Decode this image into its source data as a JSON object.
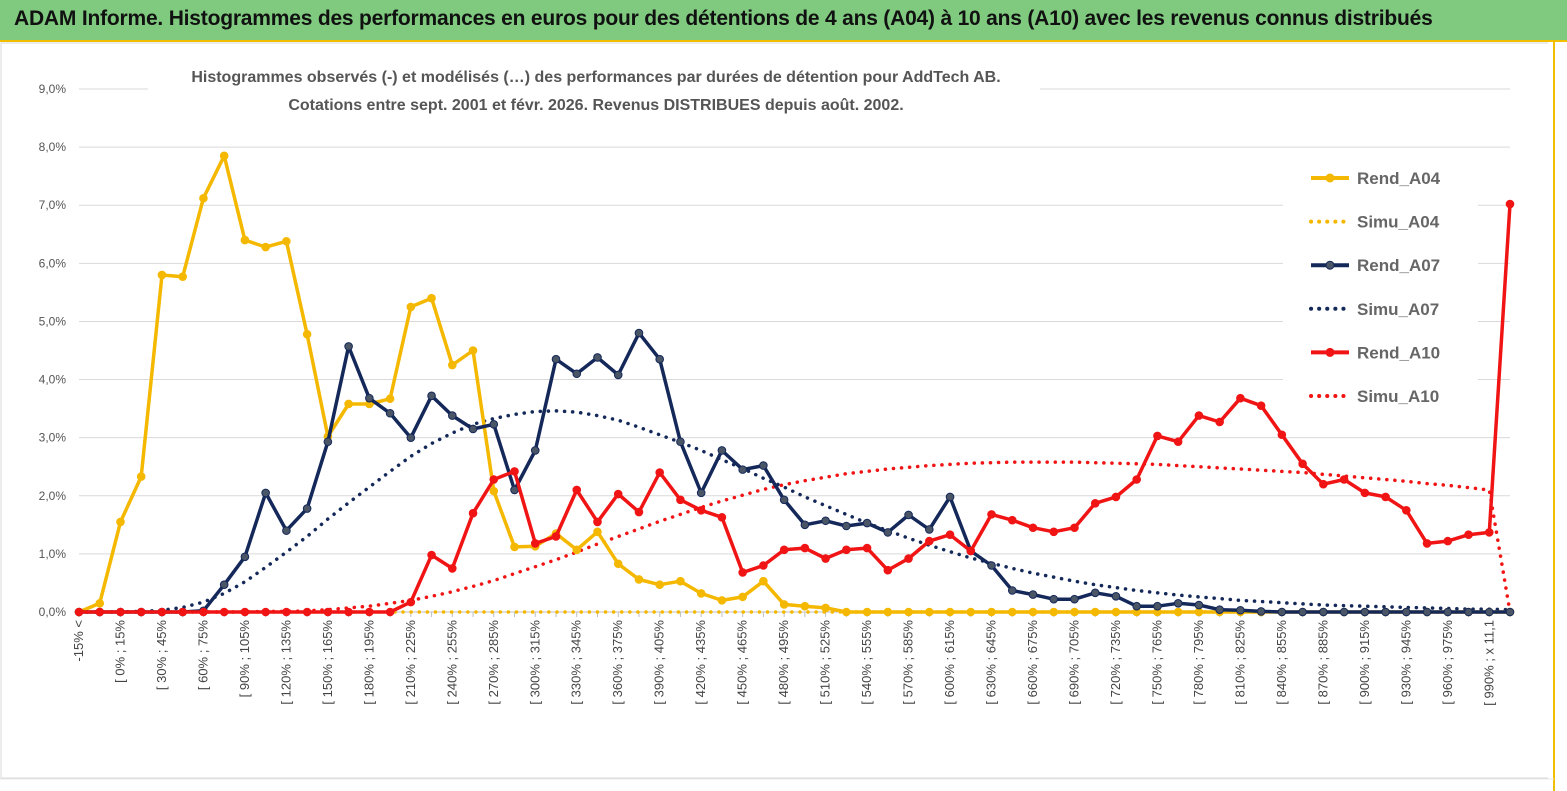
{
  "banner": {
    "title": "ADAM Informe. Histogrammes des performances en euros pour des détentions de 4 ans (A04) à 10 ans (A10) avec les revenus connus distribués"
  },
  "chart_data": {
    "type": "line",
    "title_line1": "Histogrammes observés (-)  et modélisés (…) des performances par durées de détention pour AddTech AB.",
    "title_line2": "Cotations entre sept. 2001 et févr. 2026. Revenus DISTRIBUES depuis août. 2002.",
    "y_ticks": [
      "0,0%",
      "1,0%",
      "2,0%",
      "3,0%",
      "4,0%",
      "5,0%",
      "6,0%",
      "7,0%",
      "8,0%",
      "9,0%"
    ],
    "ylim": [
      0,
      9
    ],
    "x_tick_labels": [
      "-15% <",
      "[ 0% ; 15%",
      "[ 30% ; 45%",
      "[ 60% ; 75%",
      "[ 90% ; 105%",
      "[ 120% ; 135%",
      "[ 150% ; 165%",
      "[ 180% ; 195%",
      "[ 210% ; 225%",
      "[ 240% ; 255%",
      "[ 270% ; 285%",
      "[ 300% ; 315%",
      "[ 330% ; 345%",
      "[ 360% ; 375%",
      "[ 390% ; 405%",
      "[ 420% ; 435%",
      "[ 450% ; 465%",
      "[ 480% ; 495%",
      "[ 510% ; 525%",
      "[ 540% ; 555%",
      "[ 570% ; 585%",
      "[ 600% ; 615%",
      "[ 630% ; 645%",
      "[ 660% ; 675%",
      "[ 690% ; 705%",
      "[ 720% ; 735%",
      "[ 750% ; 765%",
      "[ 780% ; 795%",
      "[ 810% ; 825%",
      "[ 840% ; 855%",
      "[ 870% ; 885%",
      "[ 900% ; 915%",
      "[ 930% ; 945%",
      "[ 960% ; 975%",
      "[ 990% ; x 11,1"
    ],
    "n_points": 70,
    "series": [
      {
        "name": "Rend_A04",
        "style": "solid",
        "marker": true,
        "color": "#f5b800",
        "values": [
          0,
          0.15,
          1.55,
          2.33,
          5.8,
          5.77,
          7.12,
          7.85,
          6.4,
          6.28,
          6.38,
          4.78,
          3.02,
          3.58,
          3.58,
          3.67,
          5.25,
          5.4,
          4.25,
          4.5,
          2.08,
          1.12,
          1.13,
          1.35,
          1.07,
          1.38,
          0.83,
          0.56,
          0.47,
          0.53,
          0.32,
          0.2,
          0.26,
          0.53,
          0.13,
          0.1,
          0.07,
          0,
          0,
          0,
          0,
          0,
          0,
          0,
          0,
          0,
          0,
          0,
          0,
          0,
          0,
          0,
          0,
          0,
          0,
          0,
          0,
          0,
          0,
          0,
          0,
          0,
          0,
          0,
          0,
          0,
          0,
          0,
          0,
          0
        ]
      },
      {
        "name": "Simu_A04",
        "style": "dotted",
        "marker": false,
        "color": "#f5b800",
        "values": [
          0,
          0,
          0,
          0,
          0,
          0,
          0,
          0,
          0,
          0,
          0,
          0,
          0,
          0,
          0,
          0,
          0,
          0,
          0,
          0,
          0,
          0,
          0,
          0,
          0,
          0,
          0,
          0,
          0,
          0,
          0,
          0,
          0,
          0,
          0,
          0,
          0,
          0,
          0,
          0,
          0,
          0,
          0,
          0,
          0,
          0,
          0,
          0,
          0,
          0,
          0,
          0,
          0,
          0,
          0,
          0,
          0,
          0,
          0,
          0,
          0,
          0,
          0,
          0,
          0,
          0,
          0,
          0,
          0,
          0
        ]
      },
      {
        "name": "Rend_A07",
        "style": "solid",
        "marker": true,
        "color": "#14285a",
        "values": [
          0,
          0,
          0,
          0,
          0,
          0,
          0.02,
          0.47,
          0.95,
          2.05,
          1.4,
          1.78,
          2.93,
          4.57,
          3.68,
          3.42,
          3.0,
          3.72,
          3.38,
          3.15,
          3.23,
          2.1,
          2.78,
          4.35,
          4.1,
          4.38,
          4.08,
          4.8,
          4.35,
          2.93,
          2.05,
          2.78,
          2.45,
          2.52,
          1.93,
          1.5,
          1.57,
          1.48,
          1.53,
          1.37,
          1.67,
          1.42,
          1.98,
          1.05,
          0.8,
          0.37,
          0.3,
          0.22,
          0.22,
          0.33,
          0.27,
          0.1,
          0.1,
          0.15,
          0.12,
          0.04,
          0.03,
          0.01,
          0,
          0,
          0,
          0,
          0,
          0,
          0,
          0,
          0,
          0,
          0,
          0
        ]
      },
      {
        "name": "Simu_A07",
        "style": "dotted",
        "marker": false,
        "color": "#14285a",
        "values": [
          0,
          0,
          0,
          0.01,
          0.03,
          0.08,
          0.17,
          0.32,
          0.52,
          0.77,
          1.03,
          1.3,
          1.6,
          1.88,
          2.15,
          2.42,
          2.68,
          2.9,
          3.08,
          3.23,
          3.33,
          3.4,
          3.45,
          3.46,
          3.44,
          3.38,
          3.3,
          3.18,
          3.05,
          2.92,
          2.78,
          2.62,
          2.47,
          2.3,
          2.15,
          1.98,
          1.83,
          1.68,
          1.53,
          1.4,
          1.27,
          1.15,
          1.04,
          0.93,
          0.84,
          0.75,
          0.67,
          0.6,
          0.53,
          0.47,
          0.42,
          0.37,
          0.33,
          0.29,
          0.26,
          0.23,
          0.2,
          0.18,
          0.16,
          0.14,
          0.12,
          0.11,
          0.1,
          0.09,
          0.08,
          0.07,
          0.06,
          0.05,
          0.05,
          0.04
        ]
      },
      {
        "name": "Rend_A10",
        "style": "solid",
        "marker": true,
        "color": "#f01414",
        "values": [
          0,
          0,
          0,
          0,
          0,
          0,
          0,
          0,
          0,
          0,
          0,
          0,
          0,
          0,
          0,
          0,
          0.17,
          0.98,
          0.75,
          1.7,
          2.28,
          2.42,
          1.18,
          1.3,
          2.1,
          1.55,
          2.03,
          1.72,
          2.4,
          1.93,
          1.75,
          1.63,
          0.68,
          0.8,
          1.07,
          1.1,
          0.92,
          1.07,
          1.1,
          0.72,
          0.92,
          1.22,
          1.33,
          1.05,
          1.68,
          1.58,
          1.45,
          1.38,
          1.45,
          1.87,
          1.98,
          2.28,
          3.03,
          2.93,
          3.38,
          3.27,
          3.68,
          3.55,
          3.05,
          2.55,
          2.2,
          2.28,
          2.05,
          1.98,
          1.75,
          1.18,
          1.22,
          1.33,
          1.37,
          7.02
        ]
      },
      {
        "name": "Simu_A10",
        "style": "dotted",
        "marker": false,
        "color": "#f01414",
        "values": [
          0,
          0,
          0,
          0,
          0,
          0,
          0,
          0,
          0,
          0.01,
          0.01,
          0.02,
          0.04,
          0.07,
          0.1,
          0.15,
          0.2,
          0.27,
          0.35,
          0.44,
          0.54,
          0.66,
          0.78,
          0.9,
          1.03,
          1.17,
          1.3,
          1.43,
          1.56,
          1.68,
          1.8,
          1.91,
          2.01,
          2.11,
          2.19,
          2.26,
          2.32,
          2.38,
          2.42,
          2.46,
          2.49,
          2.52,
          2.54,
          2.56,
          2.57,
          2.58,
          2.58,
          2.58,
          2.58,
          2.57,
          2.56,
          2.55,
          2.54,
          2.52,
          2.5,
          2.48,
          2.46,
          2.44,
          2.42,
          2.4,
          2.37,
          2.34,
          2.31,
          2.28,
          2.25,
          2.21,
          2.18,
          2.14,
          2.1,
          0
        ]
      }
    ],
    "legend_position": "right"
  }
}
